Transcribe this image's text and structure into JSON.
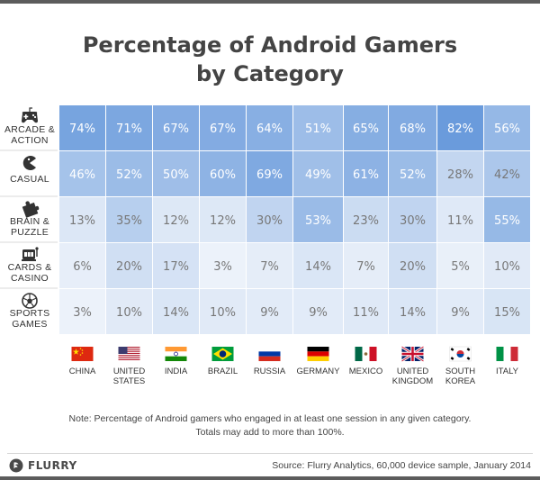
{
  "title": {
    "line1": "Percentage of Android Gamers",
    "line2": "by Category"
  },
  "note": {
    "line1": "Note: Percentage of Android gamers who engaged in at least one session in any given category.",
    "line2": "Totals may add to more than 100%."
  },
  "footer": {
    "brand": "FLURRY",
    "source": "Source: Flurry Analytics, 60,000 device sample, January 2014"
  },
  "colors": {
    "cell_min": "#f1f5fb",
    "cell_max": "#6a9bdc",
    "text_light": "#ffffff",
    "text_dark": "#777777",
    "label": "#333333"
  },
  "chart_data": {
    "type": "heatmap",
    "value_suffix": "%",
    "rows": [
      {
        "label": [
          "ARCADE &",
          "ACTION"
        ],
        "icon": "gamepad-icon",
        "values": [
          74,
          71,
          67,
          67,
          64,
          51,
          65,
          68,
          82,
          56
        ]
      },
      {
        "label": [
          "CASUAL"
        ],
        "icon": "pacman-icon",
        "values": [
          46,
          52,
          50,
          60,
          69,
          49,
          61,
          52,
          28,
          42
        ]
      },
      {
        "label": [
          "BRAIN &",
          "PUZZLE"
        ],
        "icon": "puzzle-icon",
        "values": [
          13,
          35,
          12,
          12,
          30,
          53,
          23,
          30,
          11,
          55
        ]
      },
      {
        "label": [
          "CARDS &",
          "CASINO"
        ],
        "icon": "slot-machine-icon",
        "values": [
          6,
          20,
          17,
          3,
          7,
          14,
          7,
          20,
          5,
          10
        ]
      },
      {
        "label": [
          "SPORTS",
          "GAMES"
        ],
        "icon": "soccer-ball-icon",
        "values": [
          3,
          10,
          14,
          10,
          9,
          9,
          11,
          14,
          9,
          15
        ]
      }
    ],
    "columns": [
      {
        "label": [
          "CHINA"
        ],
        "flag": "china-flag"
      },
      {
        "label": [
          "UNITED",
          "STATES"
        ],
        "flag": "usa-flag"
      },
      {
        "label": [
          "INDIA"
        ],
        "flag": "india-flag"
      },
      {
        "label": [
          "BRAZIL"
        ],
        "flag": "brazil-flag"
      },
      {
        "label": [
          "RUSSIA"
        ],
        "flag": "russia-flag"
      },
      {
        "label": [
          "GERMANY"
        ],
        "flag": "germany-flag"
      },
      {
        "label": [
          "MEXICO"
        ],
        "flag": "mexico-flag"
      },
      {
        "label": [
          "UNITED",
          "KINGDOM"
        ],
        "flag": "uk-flag"
      },
      {
        "label": [
          "SOUTH",
          "KOREA"
        ],
        "flag": "south-korea-flag"
      },
      {
        "label": [
          "ITALY"
        ],
        "flag": "italy-flag"
      }
    ]
  }
}
